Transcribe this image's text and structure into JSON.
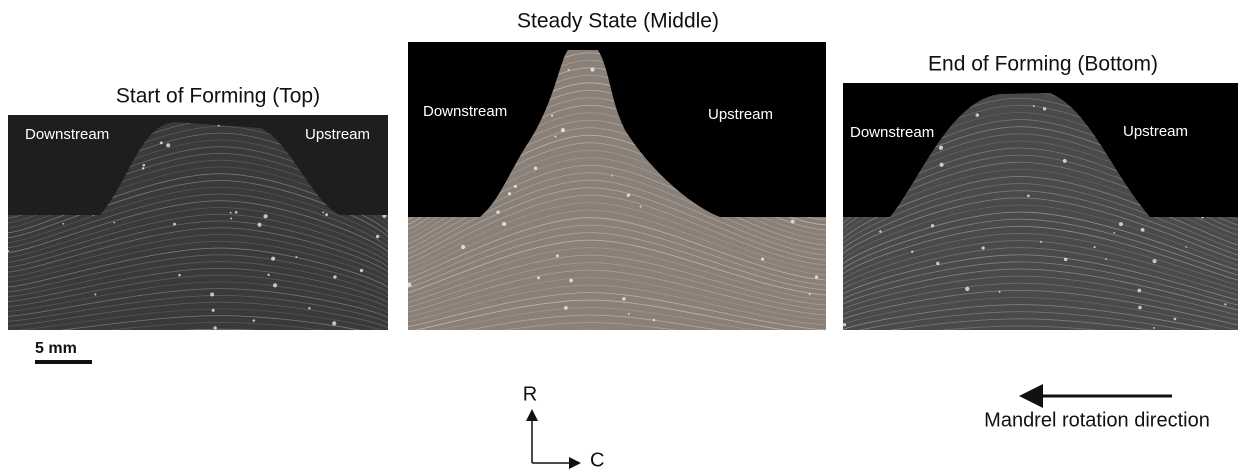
{
  "panels": [
    {
      "title": "Start of Forming (Top)",
      "left_label": "Downstream",
      "right_label": "Upstream"
    },
    {
      "title": "Steady State (Middle)",
      "left_label": "Downstream",
      "right_label": "Upstream"
    },
    {
      "title": "End of Forming (Bottom)",
      "left_label": "Downstream",
      "right_label": "Upstream"
    }
  ],
  "scale_bar": "5 mm",
  "axes": {
    "radial": "R",
    "circumferential": "C"
  },
  "rotation_label": "Mandrel rotation direction"
}
